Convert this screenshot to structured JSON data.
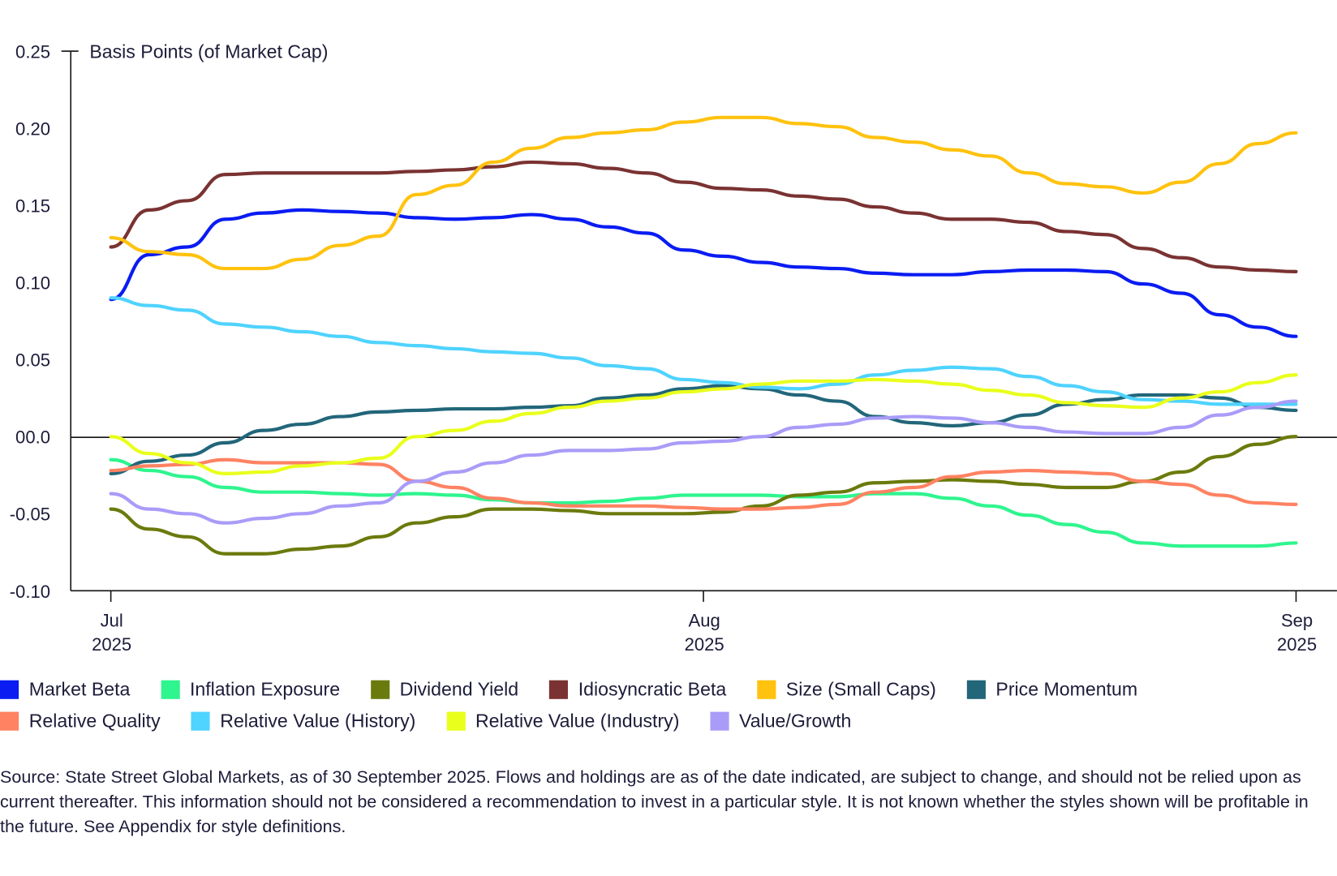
{
  "chart_data": {
    "type": "line",
    "ylabel": "Basis Points (of Market Cap)",
    "ylim": [
      -0.1,
      0.25
    ],
    "yticks": [
      "0.25",
      "0.20",
      "0.15",
      "0.10",
      "0.05",
      "00.0",
      "-0.05",
      "-0.10"
    ],
    "ytick_values": [
      0.25,
      0.2,
      0.15,
      0.1,
      0.05,
      0,
      -0.05,
      -0.1
    ],
    "xlim": [
      "2025-07-01",
      "2025-09-01"
    ],
    "xticks": [
      {
        "date": "2025-07-01",
        "month": "Jul",
        "year": "2025"
      },
      {
        "date": "2025-08-01",
        "month": "Aug",
        "year": "2025"
      },
      {
        "date": "2025-09-01",
        "month": "Sep",
        "year": "2025"
      }
    ],
    "grid": false,
    "legend_position": "bottom",
    "x": [
      "2025-07-01",
      "2025-07-03",
      "2025-07-05",
      "2025-07-07",
      "2025-07-09",
      "2025-07-11",
      "2025-07-13",
      "2025-07-15",
      "2025-07-17",
      "2025-07-19",
      "2025-07-21",
      "2025-07-23",
      "2025-07-25",
      "2025-07-27",
      "2025-07-29",
      "2025-07-31",
      "2025-08-02",
      "2025-08-04",
      "2025-08-06",
      "2025-08-08",
      "2025-08-10",
      "2025-08-12",
      "2025-08-14",
      "2025-08-16",
      "2025-08-18",
      "2025-08-20",
      "2025-08-22",
      "2025-08-24",
      "2025-08-26",
      "2025-08-28",
      "2025-08-30",
      "2025-09-01"
    ],
    "series": [
      {
        "name": "Market Beta",
        "color": "#0a1cf2",
        "values": [
          0.089,
          0.118,
          0.123,
          0.141,
          0.145,
          0.147,
          0.146,
          0.145,
          0.142,
          0.141,
          0.142,
          0.144,
          0.141,
          0.136,
          0.132,
          0.121,
          0.117,
          0.113,
          0.11,
          0.109,
          0.106,
          0.105,
          0.105,
          0.107,
          0.108,
          0.108,
          0.107,
          0.099,
          0.093,
          0.079,
          0.071,
          0.065
        ]
      },
      {
        "name": "Inflation Exposure",
        "color": "#2ef58e",
        "values": [
          -0.015,
          -0.022,
          -0.026,
          -0.033,
          -0.036,
          -0.036,
          -0.037,
          -0.038,
          -0.037,
          -0.038,
          -0.041,
          -0.043,
          -0.043,
          -0.042,
          -0.04,
          -0.038,
          -0.038,
          -0.038,
          -0.039,
          -0.039,
          -0.037,
          -0.037,
          -0.04,
          -0.045,
          -0.051,
          -0.057,
          -0.062,
          -0.069,
          -0.071,
          -0.071,
          -0.071,
          -0.069
        ]
      },
      {
        "name": "Dividend Yield",
        "color": "#6b7a0c",
        "values": [
          -0.047,
          -0.06,
          -0.065,
          -0.076,
          -0.076,
          -0.073,
          -0.071,
          -0.065,
          -0.056,
          -0.052,
          -0.047,
          -0.047,
          -0.048,
          -0.05,
          -0.05,
          -0.05,
          -0.049,
          -0.045,
          -0.038,
          -0.036,
          -0.03,
          -0.029,
          -0.028,
          -0.029,
          -0.031,
          -0.033,
          -0.033,
          -0.029,
          -0.023,
          -0.013,
          -0.005,
          0.0
        ]
      },
      {
        "name": "Idiosyncratic Beta",
        "color": "#7a3232",
        "values": [
          0.123,
          0.147,
          0.153,
          0.17,
          0.171,
          0.171,
          0.171,
          0.171,
          0.172,
          0.173,
          0.175,
          0.178,
          0.177,
          0.174,
          0.171,
          0.165,
          0.161,
          0.16,
          0.156,
          0.154,
          0.149,
          0.145,
          0.141,
          0.141,
          0.139,
          0.133,
          0.131,
          0.122,
          0.116,
          0.11,
          0.108,
          0.107
        ]
      },
      {
        "name": "Size (Small Caps)",
        "color": "#ffc20e",
        "values": [
          0.129,
          0.12,
          0.118,
          0.109,
          0.109,
          0.115,
          0.124,
          0.13,
          0.157,
          0.163,
          0.178,
          0.187,
          0.194,
          0.197,
          0.199,
          0.204,
          0.207,
          0.207,
          0.203,
          0.201,
          0.194,
          0.191,
          0.186,
          0.182,
          0.171,
          0.164,
          0.162,
          0.158,
          0.165,
          0.177,
          0.19,
          0.197
        ]
      },
      {
        "name": "Price Momentum",
        "color": "#22667a",
        "values": [
          -0.024,
          -0.016,
          -0.012,
          -0.004,
          0.004,
          0.008,
          0.013,
          0.016,
          0.017,
          0.018,
          0.018,
          0.019,
          0.02,
          0.025,
          0.027,
          0.031,
          0.033,
          0.031,
          0.027,
          0.023,
          0.013,
          0.009,
          0.007,
          0.009,
          0.014,
          0.021,
          0.024,
          0.027,
          0.027,
          0.025,
          0.019,
          0.017
        ]
      },
      {
        "name": "Relative Quality",
        "color": "#ff8262",
        "values": [
          -0.022,
          -0.019,
          -0.018,
          -0.015,
          -0.017,
          -0.017,
          -0.017,
          -0.018,
          -0.029,
          -0.033,
          -0.04,
          -0.043,
          -0.045,
          -0.045,
          -0.045,
          -0.046,
          -0.047,
          -0.047,
          -0.046,
          -0.044,
          -0.036,
          -0.033,
          -0.026,
          -0.023,
          -0.022,
          -0.023,
          -0.024,
          -0.029,
          -0.031,
          -0.038,
          -0.043,
          -0.044
        ]
      },
      {
        "name": "Relative Value (History)",
        "color": "#4fd3ff",
        "values": [
          0.09,
          0.085,
          0.082,
          0.073,
          0.071,
          0.068,
          0.065,
          0.061,
          0.059,
          0.057,
          0.055,
          0.054,
          0.051,
          0.046,
          0.044,
          0.037,
          0.035,
          0.032,
          0.031,
          0.034,
          0.04,
          0.043,
          0.045,
          0.044,
          0.039,
          0.033,
          0.029,
          0.024,
          0.023,
          0.021,
          0.021,
          0.021
        ]
      },
      {
        "name": "Relative Value (Industry)",
        "color": "#e9ff1c",
        "values": [
          0.0,
          -0.011,
          -0.017,
          -0.024,
          -0.023,
          -0.019,
          -0.017,
          -0.014,
          0.0,
          0.004,
          0.01,
          0.015,
          0.019,
          0.023,
          0.025,
          0.029,
          0.031,
          0.034,
          0.036,
          0.036,
          0.037,
          0.036,
          0.034,
          0.03,
          0.027,
          0.022,
          0.02,
          0.019,
          0.025,
          0.029,
          0.035,
          0.04
        ]
      },
      {
        "name": "Value/Growth",
        "color": "#a99cf8",
        "values": [
          -0.037,
          -0.047,
          -0.05,
          -0.056,
          -0.053,
          -0.05,
          -0.045,
          -0.043,
          -0.029,
          -0.023,
          -0.017,
          -0.012,
          -0.009,
          -0.009,
          -0.008,
          -0.004,
          -0.003,
          0.0,
          0.006,
          0.008,
          0.012,
          0.013,
          0.012,
          0.009,
          0.006,
          0.003,
          0.002,
          0.002,
          0.006,
          0.014,
          0.019,
          0.023
        ]
      }
    ]
  },
  "source_note": "Source: State Street Global Markets, as of 30 September 2025. Flows and holdings are as of the date indicated, are subject to change, and should not be relied upon as current thereafter. This information should not be considered a recommendation to invest in a particular style. It is not known whether the styles shown will be profitable in the future. See Appendix for style definitions."
}
